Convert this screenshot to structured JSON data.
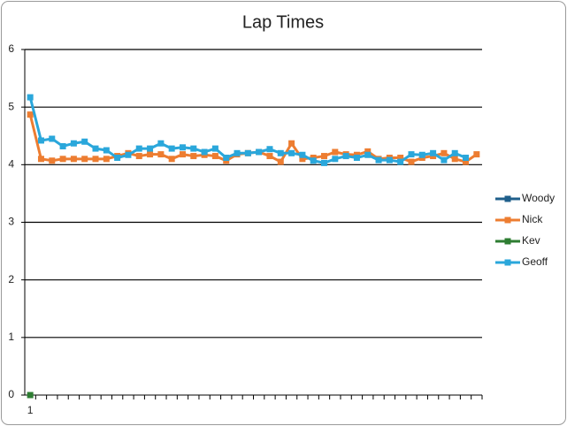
{
  "chart_data": {
    "type": "line",
    "title": "Lap Times",
    "categories": [
      "1",
      null,
      null,
      null,
      null,
      null,
      null,
      null,
      null,
      null,
      null,
      null,
      null,
      null,
      null,
      null,
      null,
      null,
      null,
      null,
      null,
      null,
      null,
      null,
      null,
      null,
      null,
      null,
      null,
      null,
      null,
      null,
      null,
      null,
      null,
      null,
      null,
      null,
      null,
      null,
      null,
      null
    ],
    "series": [
      {
        "name": "Woody",
        "color": "#1f5f8b",
        "values": [
          null,
          null,
          null,
          null,
          null,
          null,
          null,
          null,
          null,
          null,
          null,
          null,
          null,
          null,
          null,
          null,
          null,
          null,
          null,
          null,
          null,
          null,
          null,
          null,
          null,
          null,
          null,
          null,
          null,
          null,
          null,
          null,
          null,
          null,
          null,
          null,
          null,
          null,
          null,
          null,
          null,
          null
        ]
      },
      {
        "name": "Nick",
        "color": "#ed7d31",
        "values": [
          4.87,
          4.1,
          4.07,
          4.1,
          4.1,
          4.1,
          4.1,
          4.1,
          4.15,
          4.2,
          4.15,
          4.18,
          4.18,
          4.1,
          4.18,
          4.15,
          4.17,
          4.15,
          4.07,
          4.18,
          4.2,
          4.22,
          4.15,
          4.05,
          4.37,
          4.1,
          4.12,
          4.15,
          4.22,
          4.18,
          4.17,
          4.23,
          4.1,
          4.12,
          4.12,
          4.05,
          4.12,
          4.15,
          4.2,
          4.1,
          4.05,
          4.18
        ]
      },
      {
        "name": "Kev",
        "color": "#2e7d32",
        "values": [
          0,
          null,
          null,
          null,
          null,
          null,
          null,
          null,
          null,
          null,
          null,
          null,
          null,
          null,
          null,
          null,
          null,
          null,
          null,
          null,
          null,
          null,
          null,
          null,
          null,
          null,
          null,
          null,
          null,
          null,
          null,
          null,
          null,
          null,
          null,
          null,
          null,
          null,
          null,
          null,
          null,
          null
        ]
      },
      {
        "name": "Geoff",
        "color": "#2aa7db",
        "values": [
          5.17,
          4.42,
          4.45,
          4.32,
          4.37,
          4.4,
          4.28,
          4.25,
          4.12,
          4.17,
          4.28,
          4.28,
          4.37,
          4.28,
          4.3,
          4.28,
          4.22,
          4.28,
          4.12,
          4.2,
          4.2,
          4.22,
          4.27,
          4.2,
          4.2,
          4.17,
          4.07,
          4.03,
          4.1,
          4.15,
          4.12,
          4.17,
          4.08,
          4.08,
          4.05,
          4.18,
          4.17,
          4.2,
          4.08,
          4.2,
          4.12,
          null
        ]
      }
    ],
    "ylim": [
      0,
      6
    ],
    "yticks": [
      0,
      1,
      2,
      3,
      4,
      5,
      6
    ],
    "grid": true,
    "legend": "right"
  }
}
